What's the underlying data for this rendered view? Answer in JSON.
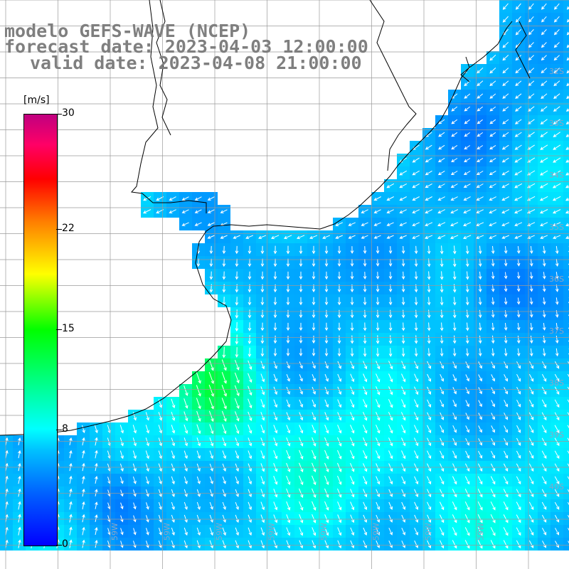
{
  "header": {
    "model": "modelo GEFS-WAVE (NCEP)",
    "forecast_date": "forecast date: 2023-04-03 12:00:00",
    "valid_date": "valid date: 2023-04-08 21:00:00"
  },
  "colorbar": {
    "unit": "[m/s]",
    "ticks": [
      {
        "value": 30,
        "label": "30"
      },
      {
        "value": 22,
        "label": "22"
      },
      {
        "value": 15,
        "label": "15"
      },
      {
        "value": 8,
        "label": "8"
      },
      {
        "value": 0,
        "label": "0"
      }
    ],
    "min": 0,
    "max": 30
  },
  "map": {
    "land_color": "#ffffff",
    "grid_color": "#9a9a9a",
    "arrow_color": "#ffffff",
    "longitude_labels": [
      "59W",
      "59W",
      "59W",
      "59W",
      "59W",
      "59W",
      "59W",
      "59W"
    ],
    "latitude_labels": [
      "32S",
      "33S",
      "34S",
      "35S",
      "36S",
      "37S",
      "38S",
      "39S",
      "40S"
    ]
  },
  "chart_data": {
    "type": "heatmap",
    "title": "modelo GEFS-WAVE (NCEP)",
    "legend": "left",
    "colorbar_range": [
      0,
      30
    ],
    "variable_unit": "[m/s]"
  }
}
